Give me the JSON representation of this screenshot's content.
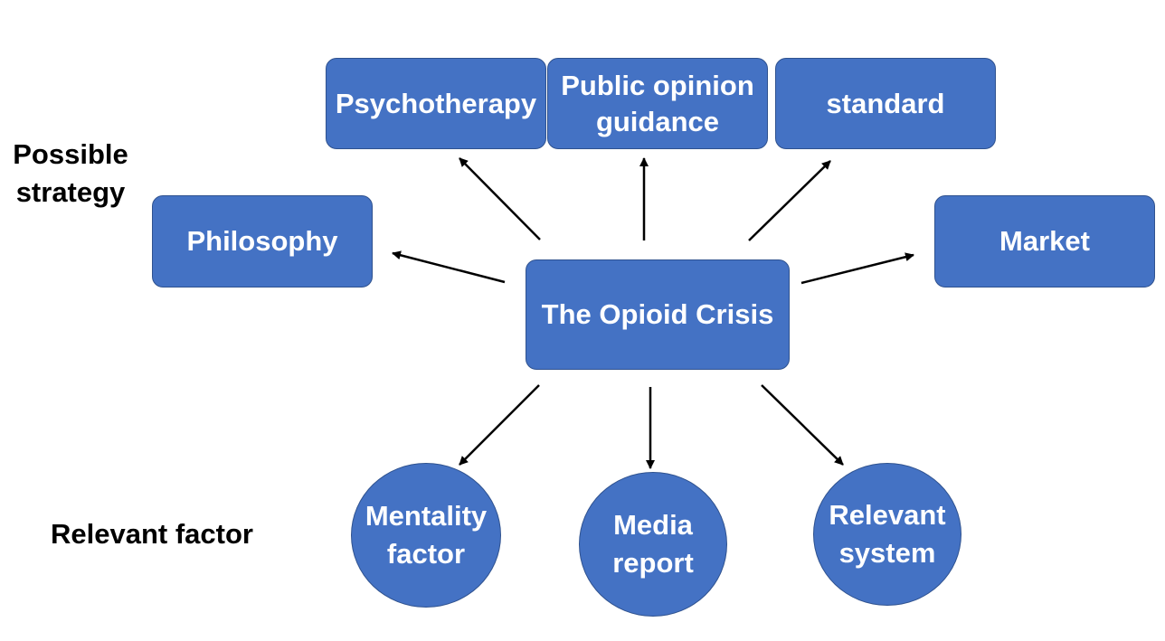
{
  "labels": {
    "strategy": "Possible\nstrategy",
    "factor": "Relevant factor"
  },
  "center": {
    "text": "The Opioid Crisis"
  },
  "strategies": [
    {
      "text": "Psychotherapy"
    },
    {
      "text": "Public opinion\nguidance"
    },
    {
      "text": "standard"
    },
    {
      "text": "Philosophy"
    },
    {
      "text": "Market"
    }
  ],
  "factors": [
    {
      "text": "Mentality\nfactor"
    },
    {
      "text": "Media\nreport"
    },
    {
      "text": "Relevant\nsystem"
    }
  ],
  "colors": {
    "node_fill": "#4472C4",
    "node_border": "#2F528F",
    "text": "#FFFFFF",
    "arrow": "#000000"
  }
}
